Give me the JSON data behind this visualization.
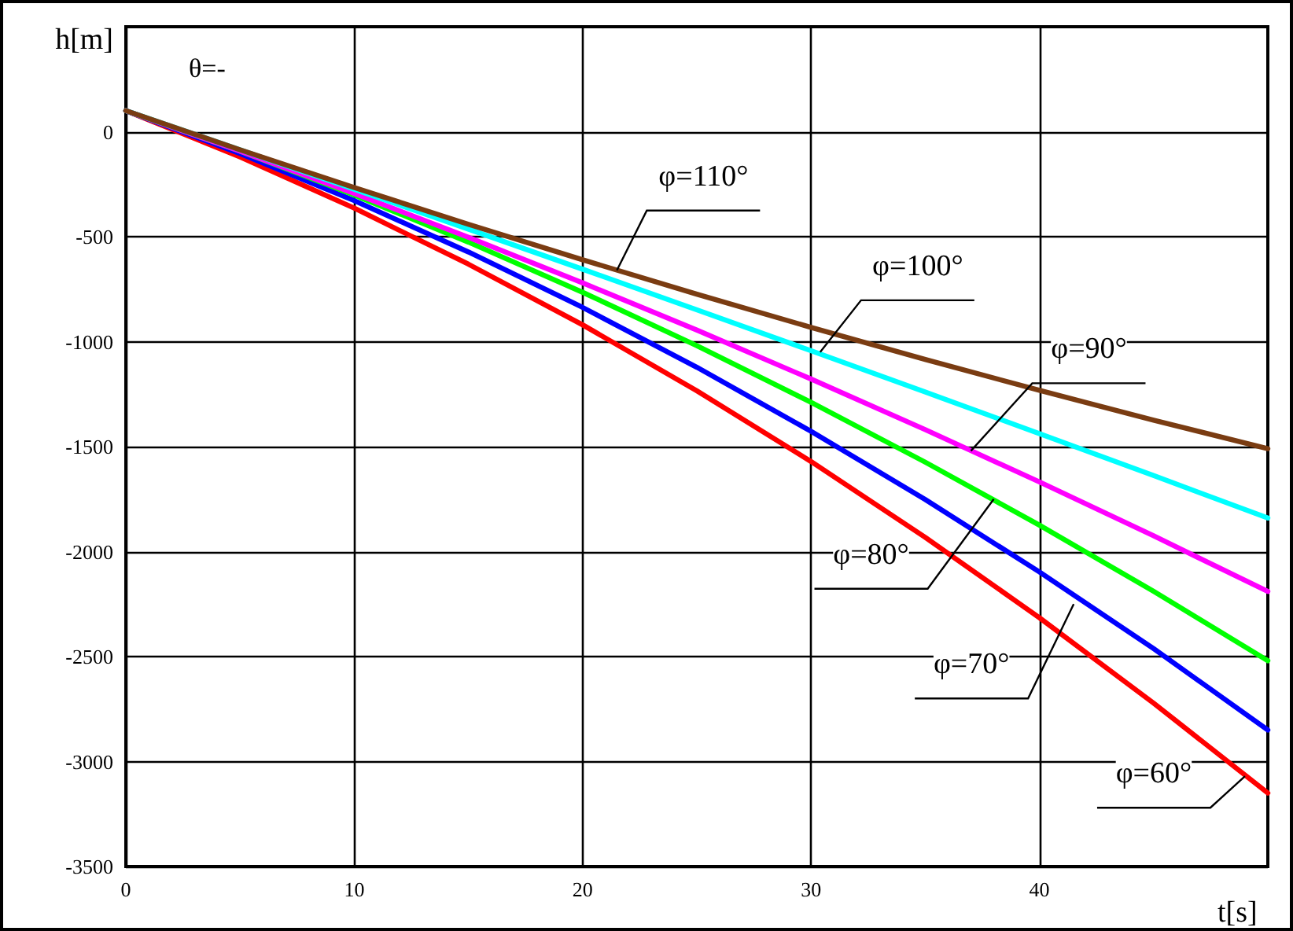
{
  "chart_data": {
    "type": "line",
    "xlabel": "t[s]",
    "ylabel": "h[m]",
    "x": [
      0,
      5,
      10,
      15,
      20,
      25,
      30,
      35,
      40,
      45,
      50
    ],
    "series": [
      {
        "color": "#ff0000",
        "values": [
          100,
          -120,
          -364,
          -631,
          -920,
          -1234,
          -1571,
          -1932,
          -2315,
          -2722,
          -3150
        ]
      },
      {
        "color": "#0000ff",
        "values": [
          100,
          -104,
          -328,
          -573,
          -837,
          -1122,
          -1427,
          -1752,
          -2097,
          -2462,
          -2850
        ]
      },
      {
        "color": "#00ff00",
        "values": [
          100,
          -93,
          -302,
          -526,
          -765,
          -1019,
          -1289,
          -1574,
          -1874,
          -2189,
          -2520
        ]
      },
      {
        "color": "#ff00ff",
        "values": [
          100,
          -93,
          -294,
          -503,
          -720,
          -945,
          -1178,
          -1419,
          -1668,
          -1925,
          -2190
        ]
      },
      {
        "color": "#00ffff",
        "values": [
          100,
          -86,
          -274,
          -464,
          -655,
          -848,
          -1043,
          -1240,
          -1438,
          -1638,
          -1840
        ]
      },
      {
        "color": "#7a3c12",
        "values": [
          100,
          -86,
          -266,
          -441,
          -610,
          -774,
          -932,
          -1085,
          -1232,
          -1374,
          -1510
        ]
      }
    ],
    "xlim": [
      0,
      50
    ],
    "xticks": [
      0,
      10,
      20,
      30,
      40
    ],
    "ylim": [
      -3500,
      500
    ],
    "yticks": [
      -3500,
      -3000,
      -2500,
      -2000,
      -1500,
      -1000,
      -500,
      0
    ],
    "grid": true,
    "marker": "none",
    "line_style": "solid",
    "annotations": [
      "θ=-",
      {
        "text": "φ=110°",
        "x": 21.5,
        "y": -660
      },
      {
        "text": "φ=100°",
        "x": 30.4,
        "y": -1050
      },
      {
        "text": "φ=90°",
        "x": 37,
        "y": -1520
      },
      {
        "text": "φ=80°",
        "x": 38,
        "y": -1750
      },
      {
        "text": "φ=70°",
        "x": 41.5,
        "y": -2250
      },
      {
        "text": "φ=60°",
        "x": 49,
        "y": -3070
      }
    ]
  }
}
